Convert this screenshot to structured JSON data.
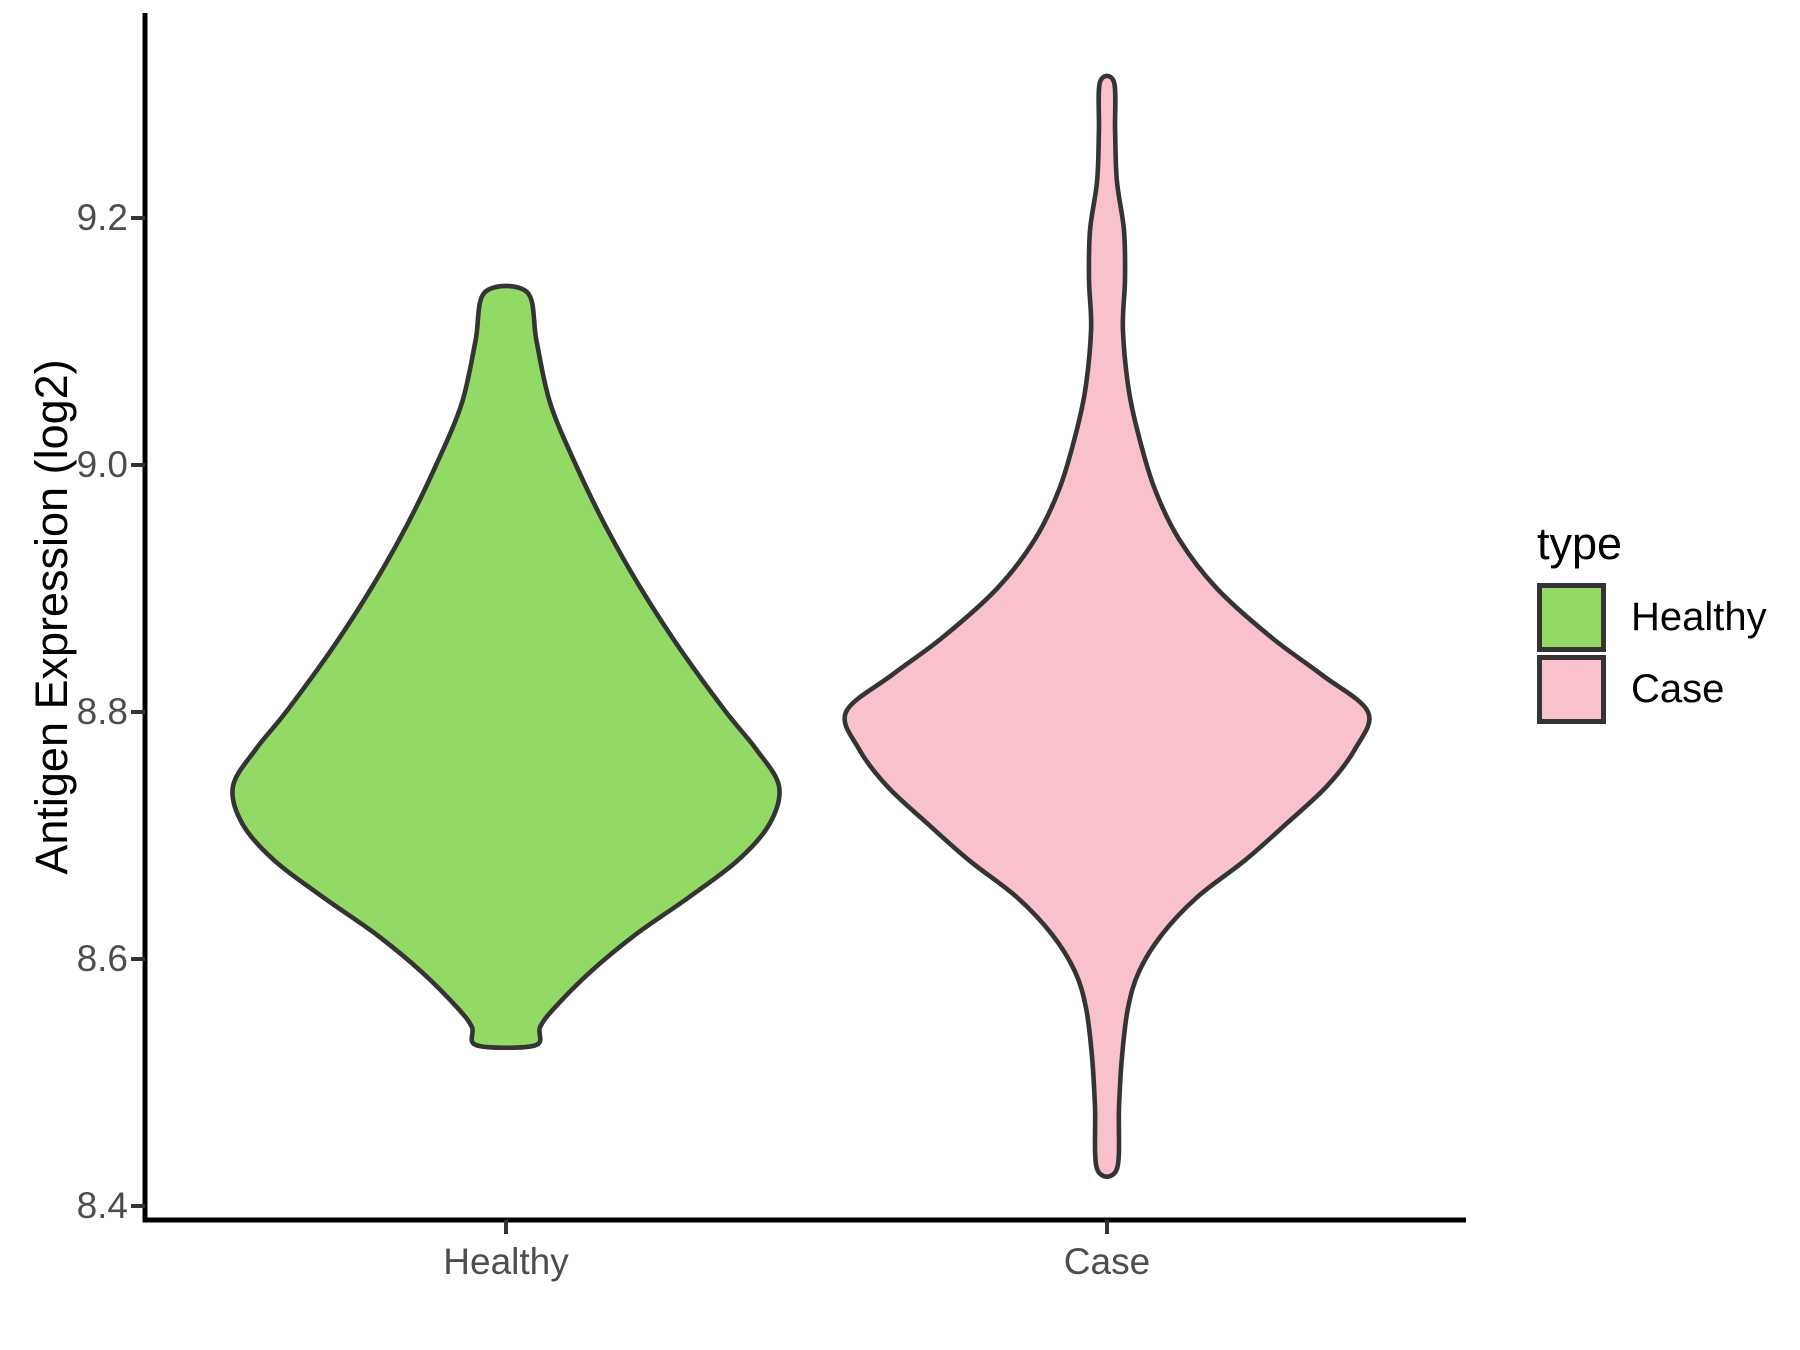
{
  "chart_data": {
    "type": "violin",
    "title": "",
    "xlabel": "",
    "ylabel": "Antigen Expression (log2)",
    "categories": [
      "Healthy",
      "Case"
    ],
    "y_ticks": [
      "8.4",
      "8.6",
      "8.8",
      "9.0",
      "9.2"
    ],
    "y_tick_values": [
      8.4,
      8.6,
      8.8,
      9.0,
      9.2
    ],
    "y_axis_range": [
      8.38,
      9.37
    ],
    "grid": "off",
    "axis_color": "#000000",
    "tick_color": "#333333",
    "tick_label_color": "#4D4D4D",
    "outline_color": "#343434",
    "legend": {
      "title": "type",
      "position": "right",
      "entries": [
        {
          "label": "Healthy",
          "fill": "#92D966"
        },
        {
          "label": "Case",
          "fill": "#F8C1CC"
        }
      ]
    },
    "series": [
      {
        "name": "Healthy",
        "fill": "#92D966",
        "summary": {
          "min": 8.53,
          "max": 9.14,
          "widest_at": 8.74
        },
        "density_profile": [
          [
            9.14,
            0.077
          ],
          [
            9.1,
            0.112
          ],
          [
            9.05,
            0.162
          ],
          [
            9.0,
            0.256
          ],
          [
            8.95,
            0.366
          ],
          [
            8.9,
            0.494
          ],
          [
            8.85,
            0.641
          ],
          [
            8.8,
            0.806
          ],
          [
            8.77,
            0.916
          ],
          [
            8.74,
            1.0
          ],
          [
            8.71,
            0.967
          ],
          [
            8.68,
            0.85
          ],
          [
            8.65,
            0.67
          ],
          [
            8.62,
            0.476
          ],
          [
            8.59,
            0.311
          ],
          [
            8.56,
            0.176
          ],
          [
            8.545,
            0.125
          ],
          [
            8.53,
            0.106
          ]
        ]
      },
      {
        "name": "Case",
        "fill": "#F8C1CC",
        "summary": {
          "min": 8.43,
          "max": 9.31,
          "widest_at": 8.8
        },
        "density_profile": [
          [
            9.31,
            0.027
          ],
          [
            9.27,
            0.031
          ],
          [
            9.23,
            0.038
          ],
          [
            9.19,
            0.065
          ],
          [
            9.15,
            0.069
          ],
          [
            9.11,
            0.061
          ],
          [
            9.06,
            0.084
          ],
          [
            9.02,
            0.126
          ],
          [
            8.98,
            0.184
          ],
          [
            8.94,
            0.276
          ],
          [
            8.9,
            0.421
          ],
          [
            8.86,
            0.632
          ],
          [
            8.83,
            0.824
          ],
          [
            8.8,
            1.0
          ],
          [
            8.77,
            0.95
          ],
          [
            8.74,
            0.843
          ],
          [
            8.71,
            0.69
          ],
          [
            8.68,
            0.529
          ],
          [
            8.65,
            0.345
          ],
          [
            8.62,
            0.211
          ],
          [
            8.59,
            0.123
          ],
          [
            8.56,
            0.08
          ],
          [
            8.52,
            0.057
          ],
          [
            8.48,
            0.046
          ],
          [
            8.43,
            0.038
          ]
        ]
      }
    ]
  }
}
